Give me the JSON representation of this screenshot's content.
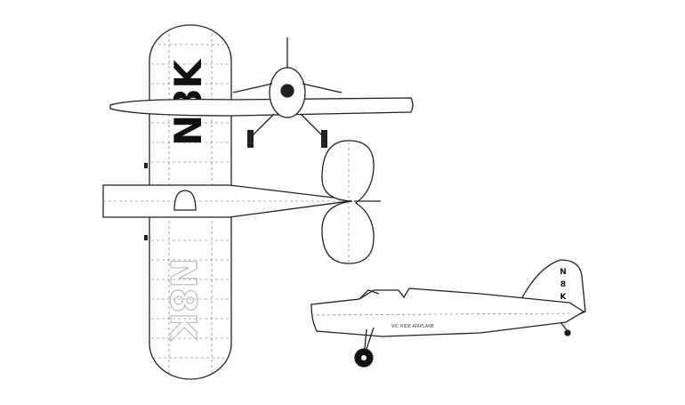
{
  "registration": "N8K",
  "registration_letters": [
    "N",
    "8",
    "K"
  ],
  "fuselage_text": "VIC RIDE AIRPLANE"
}
